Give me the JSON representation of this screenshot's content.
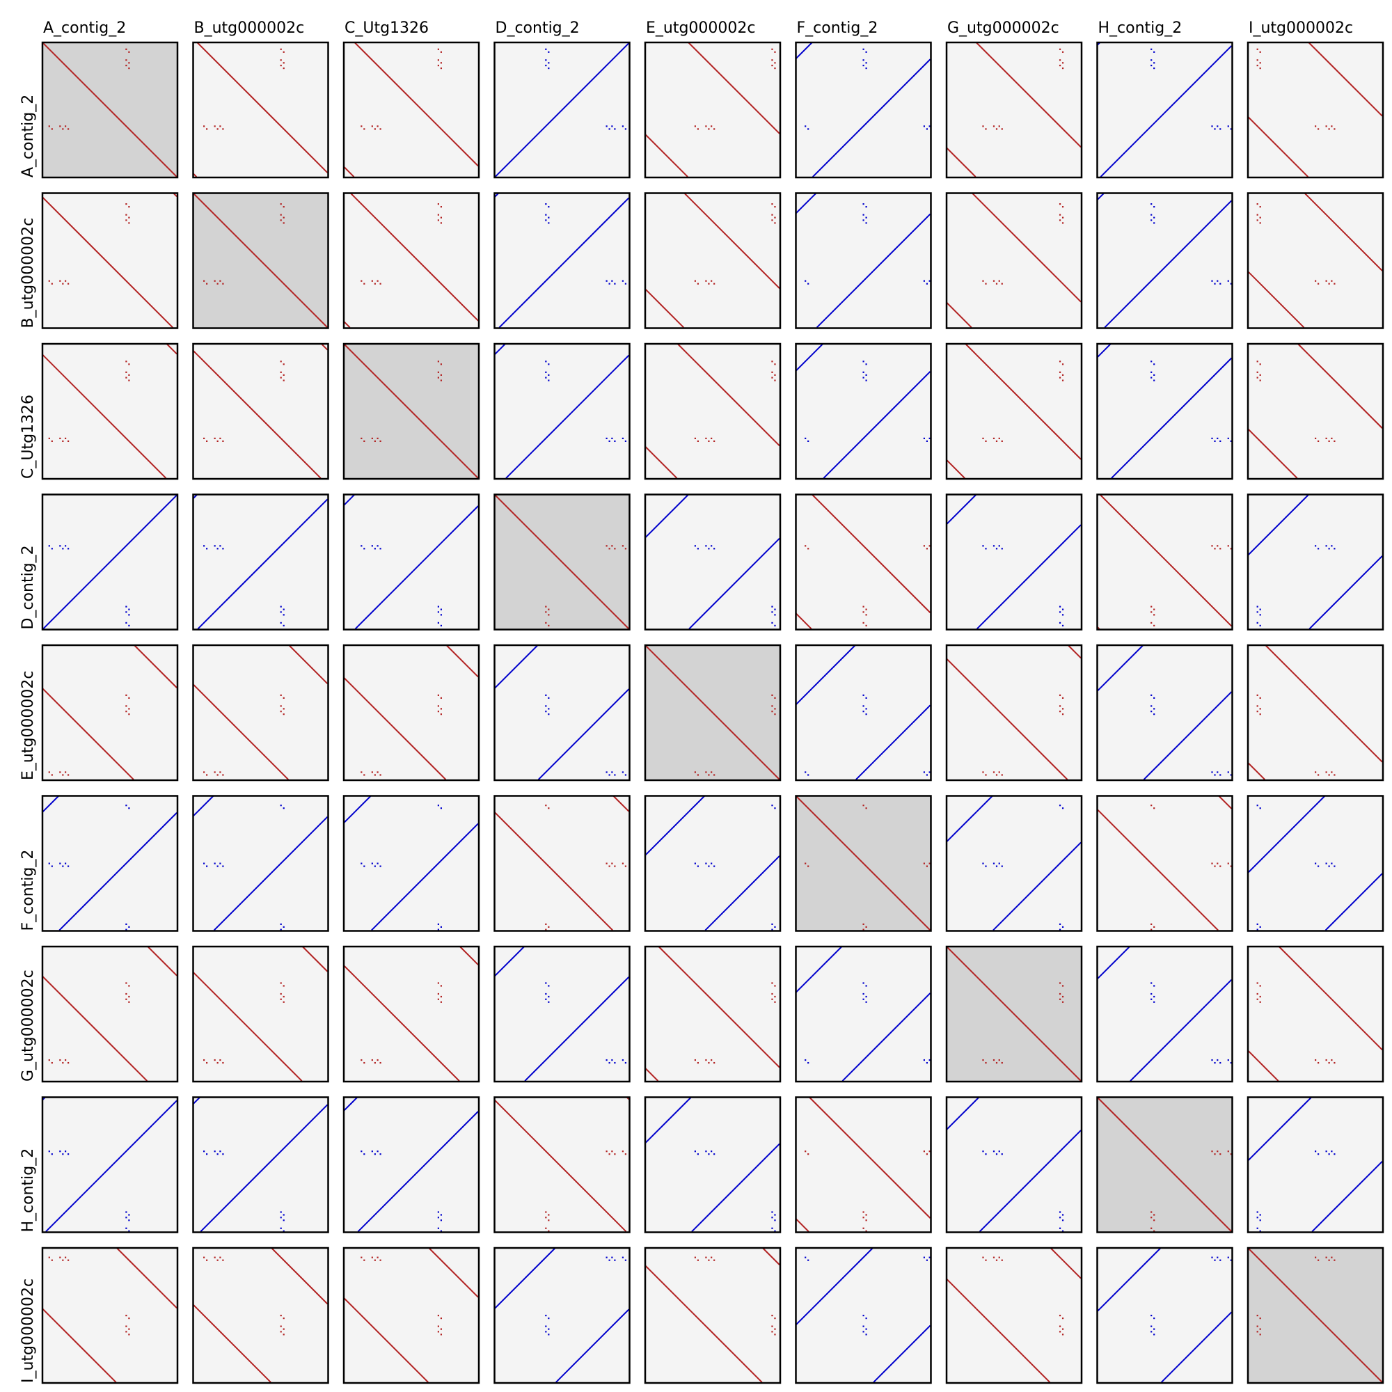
{
  "chart_data": {
    "type": "dotplot-matrix",
    "description_of_encoding": "Pairwise self/cross dot-plots. Blue = reverse-complement alignment (descending), red = forward alignment (ascending). Coordinates are in normalized sequence position [0,1] from top-left.",
    "sequences": [
      "A_contig_2",
      "B_utg000002c",
      "C_Utg1326",
      "D_contig_2",
      "E_utg000002c",
      "F_contig_2",
      "G_utg000002c",
      "H_contig_2",
      "I_utg000002c"
    ],
    "row_labels": [
      "A_contig_2",
      "B_utg000002c",
      "C_Utg1326",
      "D_contig_2",
      "E_utg000002c",
      "F_contig_2",
      "G_utg000002c",
      "H_contig_2",
      "I_utg000002c"
    ],
    "orientation": [
      "+",
      "+",
      "+",
      "-",
      "+",
      "-",
      "+",
      "-",
      "+"
    ],
    "offset": [
      0.0,
      0.03,
      0.08,
      0.0,
      0.32,
      0.12,
      0.22,
      0.02,
      0.45
    ],
    "colors": {
      "forward": "#b22222",
      "reverse": "#0000cc",
      "panel_bg": "#f4f4f4",
      "diag_bg": "#d3d3d3"
    },
    "grid": false
  }
}
